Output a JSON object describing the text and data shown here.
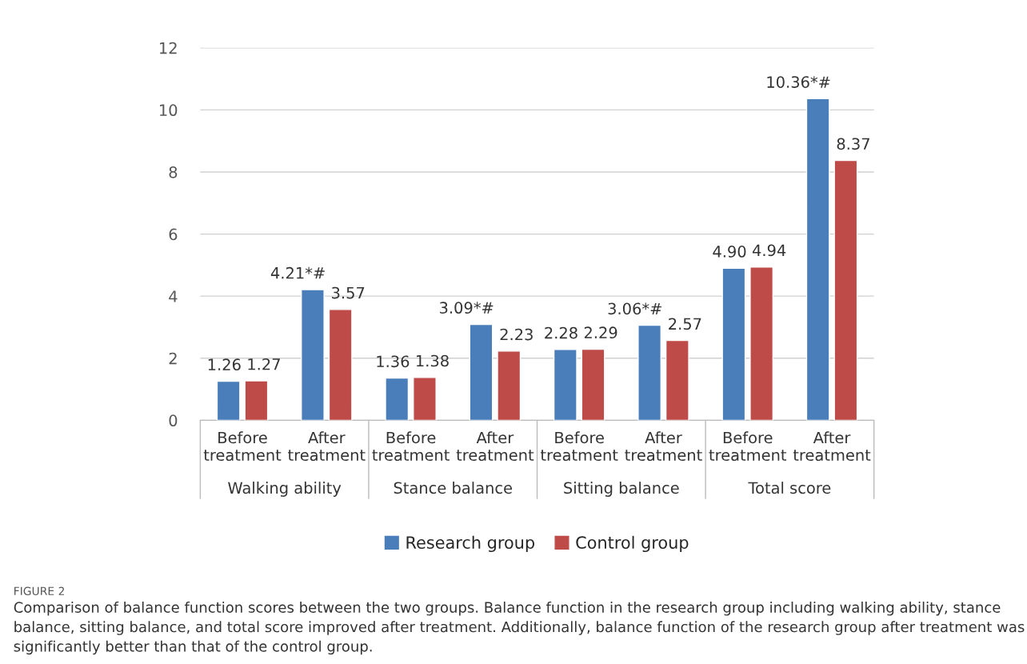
{
  "chart_data": {
    "type": "bar",
    "categories": [
      "Before treatment",
      "After treatment",
      "Before treatment",
      "After treatment",
      "Before treatment",
      "After treatment",
      "Before treatment",
      "After treatment"
    ],
    "series": [
      {
        "name": "Research group",
        "color": "#4a7ebb",
        "values": [
          1.26,
          4.21,
          1.36,
          3.09,
          2.28,
          3.06,
          4.9,
          10.36
        ],
        "value_labels": [
          "1.26",
          "4.21*#",
          "1.36",
          "3.09*#",
          "2.28",
          "3.06*#",
          "4.90",
          "10.36*#"
        ]
      },
      {
        "name": "Control group",
        "color": "#be4b48",
        "values": [
          1.27,
          3.57,
          1.38,
          2.23,
          2.29,
          2.57,
          4.94,
          8.37
        ],
        "value_labels": [
          "1.27",
          "3.57",
          "1.38",
          "2.23",
          "2.29",
          "2.57",
          "4.94",
          "8.37"
        ]
      }
    ],
    "ylim": [
      0,
      12
    ],
    "yticks": [
      0,
      2,
      4,
      6,
      8,
      10,
      12
    ],
    "grid": "y",
    "legend": "bottom",
    "annotations": [
      "Walking ability",
      "Stance balance",
      "Sitting balance",
      "Total score",
      "FIGURE 2",
      "Comparison of balance function scores between the two groups. Balance function in the research group including walking ability, stance balance, sitting balance, and total score improved after treatment. Additionally, balance function of the research group after treatment was significantly better than that of the control group."
    ]
  }
}
